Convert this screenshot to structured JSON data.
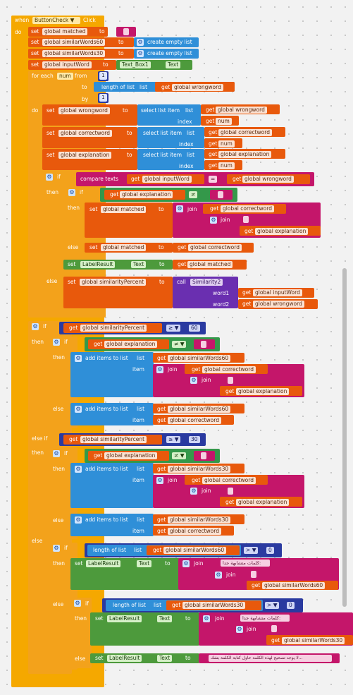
{
  "event": {
    "when": "when",
    "component": "ButtonCheck",
    "dd": "▼",
    "event": "Click",
    "do": "do"
  },
  "kw": {
    "set": "set",
    "to": "to",
    "get": "get",
    "create_empty_list": "create empty list",
    "for_each": "for each",
    "from": "from",
    "by": "by",
    "length_of_list": "length of list",
    "list": "list",
    "do": "do",
    "select_list_item": "select list item",
    "index": "index",
    "if": "if",
    "then": "then",
    "else": "else",
    "else_if": "else if",
    "compare_texts": "compare texts",
    "join": "join",
    "call": "call",
    "add_items": "add items to list",
    "item": "item",
    "dot": ".",
    "quote": "\"",
    "dd": "▼"
  },
  "vars": {
    "matched": "global matched",
    "similar60": "global similarWords60",
    "similar30": "global similarWords30",
    "input_word": "global inputWord",
    "wrongword": "global wrongword",
    "correctword": "global correctword",
    "explanation": "global explanation",
    "similarity": "global similarityPercent",
    "num": "num"
  },
  "components": {
    "text_box": "Text_Box1",
    "text_prop": "Text",
    "label": "LabelResult",
    "similarity": "Similarity2",
    "word1": "word1",
    "word2": "word2"
  },
  "numbers": {
    "one": "1",
    "sixty": "60",
    "thirty": "30",
    "zero": "0"
  },
  "ops": {
    "eq": "=",
    "neq": "≠",
    "gte": "≥",
    "gt": ">"
  },
  "strings": {
    "empty": "",
    "similar_words": "كلمات متشابهة جدا:",
    "similar_words_2": "كلمات متشابهة جدا:",
    "sorry": "لا يوجد تصحيح لهذه الكلمة حاول كتابة الكلمة بشك..."
  }
}
